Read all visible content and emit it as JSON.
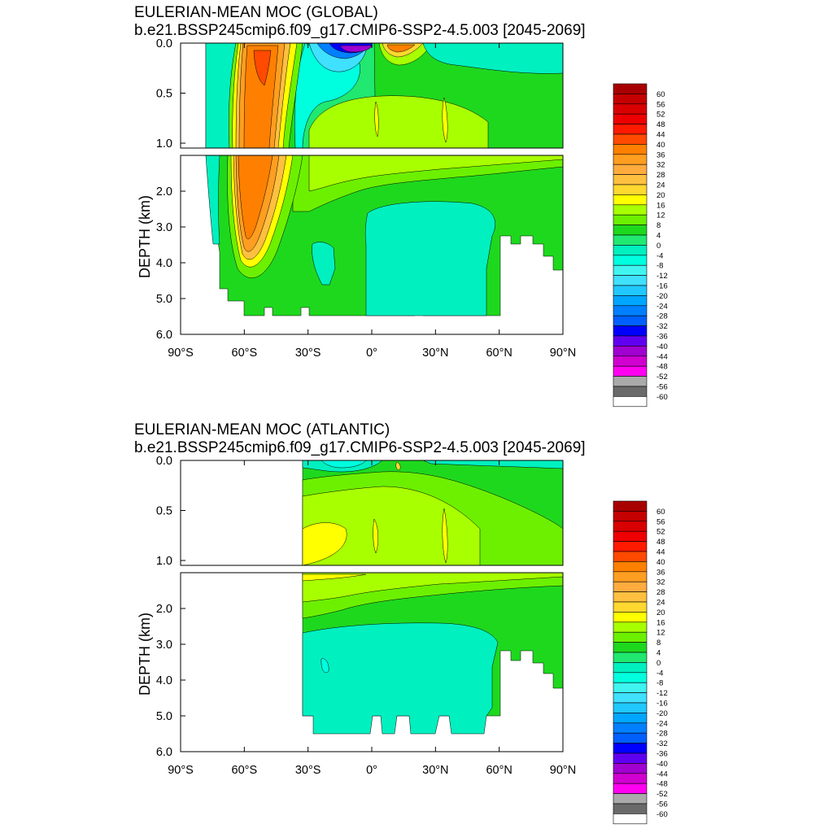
{
  "chart_data": [
    {
      "type": "heatmap",
      "subtype": "filled-contour",
      "title": "EULERIAN-MEAN MOC (GLOBAL)",
      "subtitle": "b.e21.BSSP245cmip6.f09_g17.CMIP6-SSP2-4.5.003 [2045-2069]",
      "xlabel": "",
      "ylabel": "DEPTH (km)",
      "x_ticks": [
        "90°S",
        "60°S",
        "30°S",
        "0°",
        "30°N",
        "60°N",
        "90°N"
      ],
      "x_tick_values": [
        -90,
        -60,
        -30,
        0,
        30,
        60,
        90
      ],
      "y_ticks_upper": [
        "0.0",
        "0.5",
        "1.0"
      ],
      "y_ticks_lower": [
        "2.0",
        "3.0",
        "4.0",
        "5.0",
        "6.0"
      ],
      "xlim": [
        -90,
        90
      ],
      "ylim": [
        6.0,
        0.0
      ],
      "upper_panel_depth_range_km": [
        0.0,
        1.0
      ],
      "lower_panel_depth_range_km": [
        1.0,
        6.0
      ],
      "contour_interval": 4,
      "features": {
        "antarctic_cell_core_lat": -50,
        "antarctic_cell_max": 40,
        "surface_min_lat": -15,
        "surface_min": -40,
        "surface_max_lat": 10,
        "surface_max": 36,
        "deep_abyssal_cell": -4,
        "upper_cell_value": 8
      },
      "colorbar_labels": [
        "60",
        "56",
        "52",
        "48",
        "44",
        "40",
        "36",
        "32",
        "28",
        "24",
        "20",
        "16",
        "12",
        "8",
        "4",
        "0",
        "-4",
        "-8",
        "-12",
        "-16",
        "-20",
        "-24",
        "-28",
        "-32",
        "-36",
        "-40",
        "-44",
        "-48",
        "-52",
        "-56",
        "-60"
      ]
    },
    {
      "type": "heatmap",
      "subtype": "filled-contour",
      "title": "EULERIAN-MEAN MOC (ATLANTIC)",
      "subtitle": "b.e21.BSSP245cmip6.f09_g17.CMIP6-SSP2-4.5.003 [2045-2069]",
      "xlabel": "",
      "ylabel": "DEPTH (km)",
      "x_ticks": [
        "90°S",
        "60°S",
        "30°S",
        "0°",
        "30°N",
        "60°N",
        "90°N"
      ],
      "x_tick_values": [
        -90,
        -60,
        -30,
        0,
        30,
        60,
        90
      ],
      "y_ticks_upper": [
        "0.0",
        "0.5",
        "1.0"
      ],
      "y_ticks_lower": [
        "2.0",
        "3.0",
        "4.0",
        "5.0",
        "6.0"
      ],
      "xlim": [
        -90,
        90
      ],
      "ylim": [
        6.0,
        0.0
      ],
      "upper_panel_depth_range_km": [
        0.0,
        1.0
      ],
      "lower_panel_depth_range_km": [
        1.0,
        6.0
      ],
      "contour_interval": 4,
      "data_start_lat": -33,
      "features": {
        "nadw_cell_max": 16,
        "nadw_core_value": 12,
        "aabw_cell": -4,
        "southern_surface_min": -8
      },
      "colorbar_labels": [
        "60",
        "56",
        "52",
        "48",
        "44",
        "40",
        "36",
        "32",
        "28",
        "24",
        "20",
        "16",
        "12",
        "8",
        "4",
        "0",
        "-4",
        "-8",
        "-12",
        "-16",
        "-20",
        "-24",
        "-28",
        "-32",
        "-36",
        "-40",
        "-44",
        "-48",
        "-52",
        "-56",
        "-60"
      ]
    }
  ],
  "colorbar": {
    "colors": [
      "#a80000",
      "#c40000",
      "#d80000",
      "#ee0000",
      "#ff1a00",
      "#ff4a00",
      "#ff8000",
      "#ff9e20",
      "#ffab3e",
      "#ffc040",
      "#ffd830",
      "#ffff00",
      "#a8ff00",
      "#6cf000",
      "#1ed81e",
      "#20e870",
      "#00f0c0",
      "#00ffdf",
      "#40f4f0",
      "#40e0ff",
      "#20c8ff",
      "#00a6ff",
      "#0080ff",
      "#0060ff",
      "#0000ff",
      "#6000f0",
      "#a000d0",
      "#d000d0",
      "#ff00f0",
      "#aaaaaa",
      "#6a6a6a",
      "#ffffff"
    ]
  }
}
